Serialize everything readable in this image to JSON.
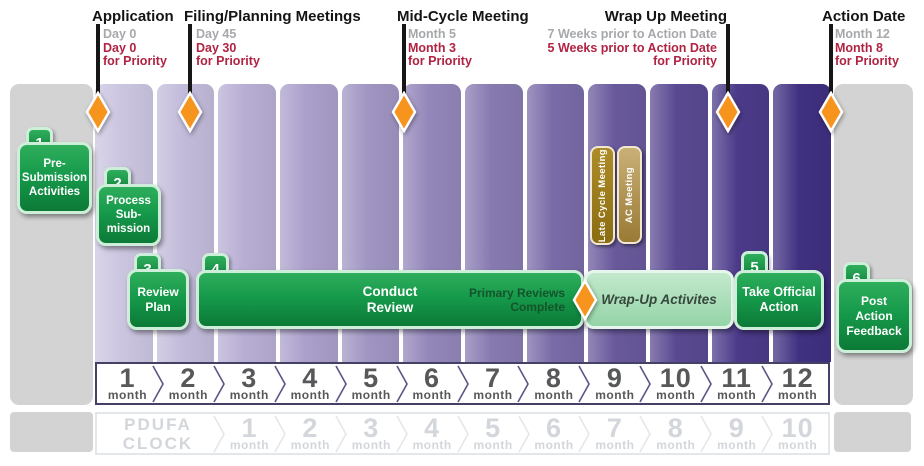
{
  "colors": {
    "orange": "#f7941e",
    "red_priority": "#b02342",
    "gray_standard": "#a6a8ab",
    "gray_block": "#d3d3d3",
    "green_dark": "#0c7a37",
    "green_light": "#2fae5c",
    "mint_border": "#cdeed8",
    "wrap_bar_green": "#a9ddb8",
    "tag_gold": "#9c7b1c",
    "tag_tan": "#b3964f",
    "column_shades": [
      "#cbc5e0",
      "#c2bbda",
      "#b8aed4",
      "#ab9fcb",
      "#a095c3",
      "#9386ba",
      "#877ab1",
      "#796ba7",
      "#69599c",
      "#594992",
      "#4b3a89",
      "#403081"
    ]
  },
  "milestones": [
    {
      "title": "Application",
      "standard": "Day 0",
      "priority": "Day 0",
      "priority_suffix": "for Priority"
    },
    {
      "title": "Filing/Planning Meetings",
      "standard": "Day 45",
      "priority": "Day 30",
      "priority_suffix": "for Priority"
    },
    {
      "title": "Mid-Cycle Meeting",
      "standard": "Month 5",
      "priority": "Month 3",
      "priority_suffix": "for Priority"
    },
    {
      "title": "Wrap Up Meeting",
      "standard": "7 Weeks prior to Action Date",
      "priority": "5 Weeks prior to Action Date",
      "priority_suffix": "for Priority"
    },
    {
      "title": "Action Date",
      "standard": "Month 12",
      "priority": "Month 8",
      "priority_suffix": "for Priority"
    }
  ],
  "steps": {
    "step1": {
      "number": "1",
      "label": "Pre-\nSubmission\nActivities"
    },
    "step2": {
      "number": "2",
      "label": "Process\nSub-\nmission"
    },
    "step3": {
      "number": "3",
      "label": "Review\nPlan"
    },
    "step4": {
      "number": "4",
      "label": "Conduct\nReview",
      "complete_note": "Primary Reviews\nComplete"
    },
    "wrap_up": {
      "label": "Wrap-Up Activites"
    },
    "step5": {
      "number": "5",
      "label": "Take Official\nAction"
    },
    "step6": {
      "number": "6",
      "label": "Post\nAction\nFeedback"
    }
  },
  "meetings": {
    "late_cycle": "Late Cycle Meeting",
    "ac": "AC Meeting"
  },
  "month_axis": {
    "numbers": [
      "1",
      "2",
      "3",
      "4",
      "5",
      "6",
      "7",
      "8",
      "9",
      "10",
      "11",
      "12"
    ],
    "unit": "month"
  },
  "pdufa": {
    "label": "PDUFA\nCLOCK",
    "numbers": [
      "1",
      "2",
      "3",
      "4",
      "5",
      "6",
      "7",
      "8",
      "9",
      "10"
    ],
    "unit": "month"
  }
}
